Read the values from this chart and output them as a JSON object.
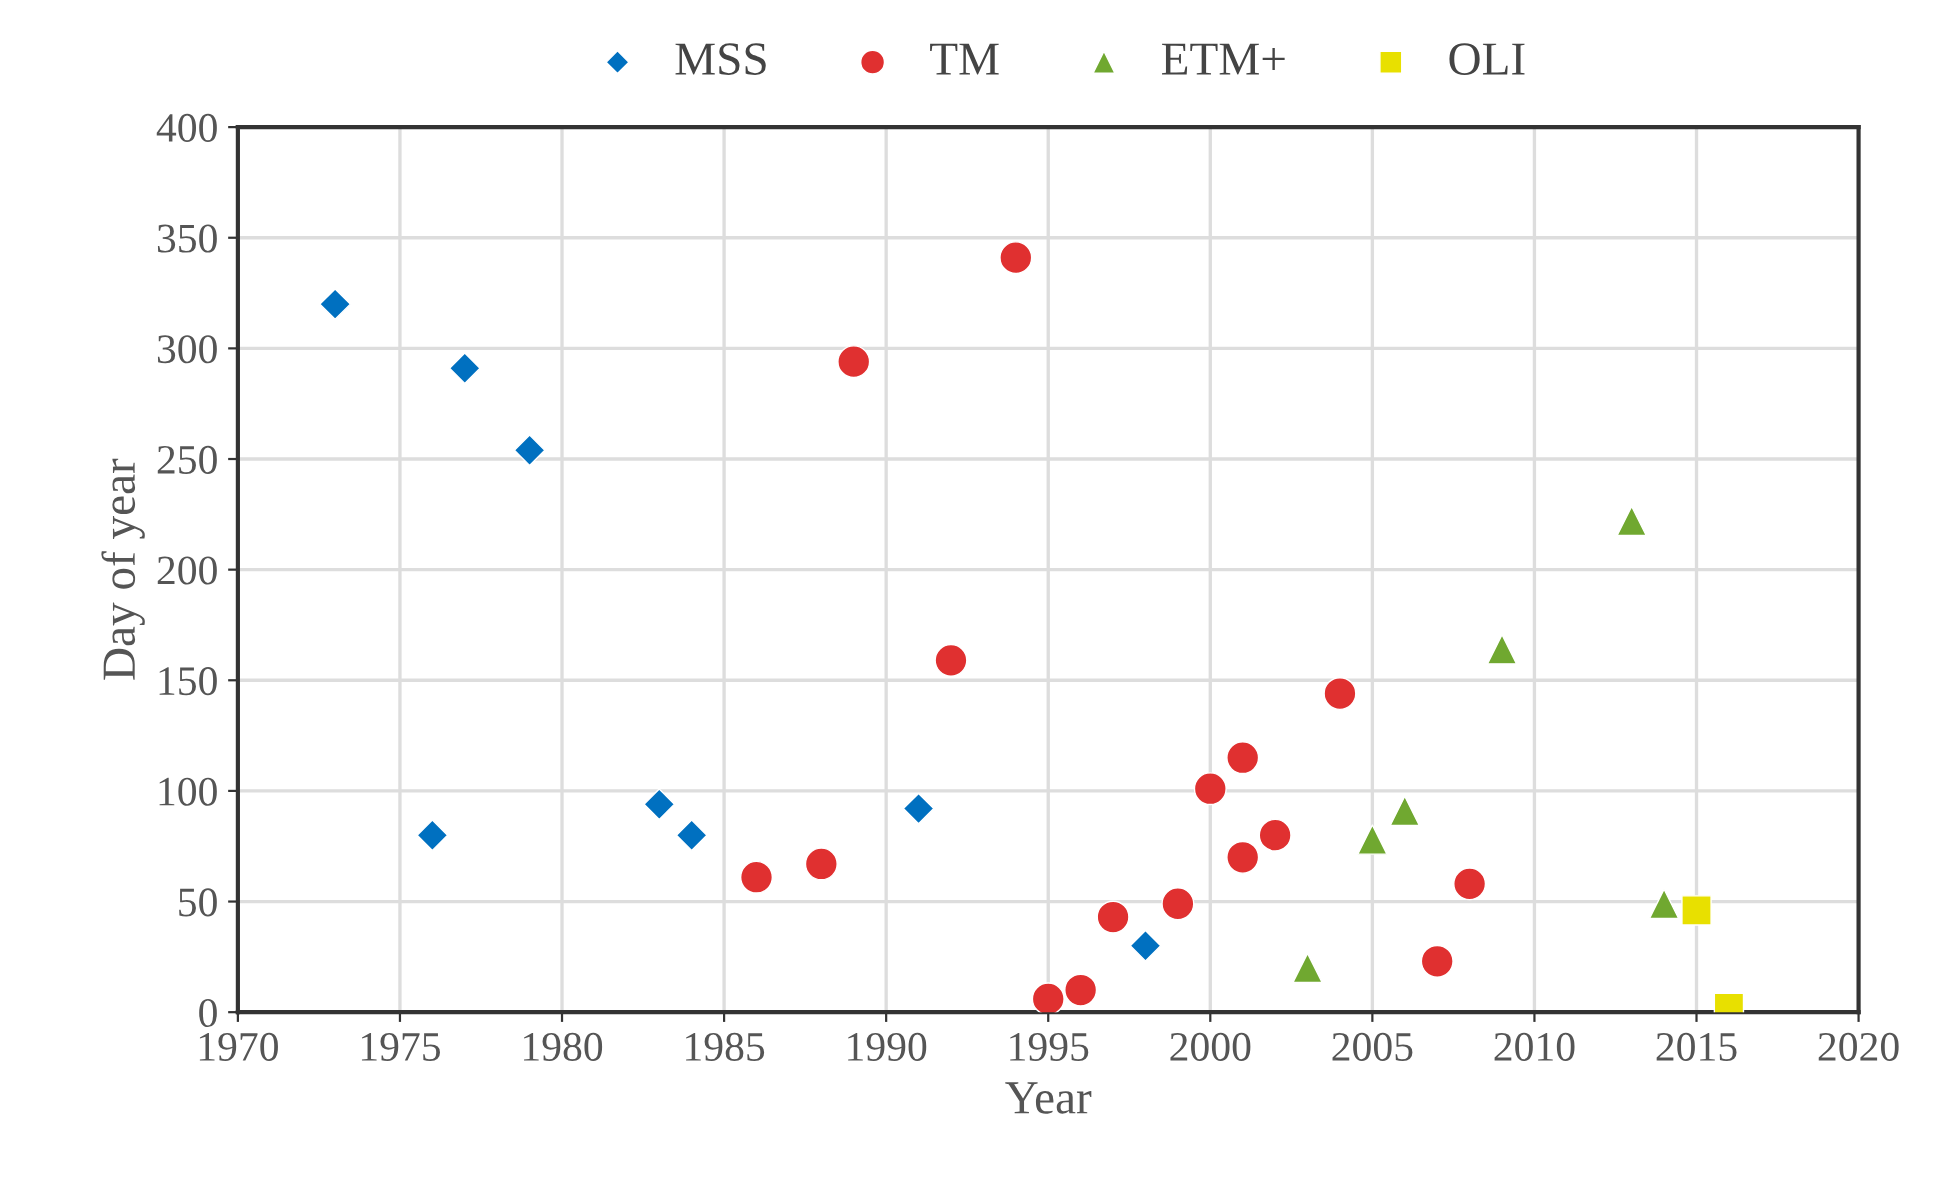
{
  "chart_data": {
    "type": "scatter",
    "xlabel": "Year",
    "ylabel": "Day of year",
    "xlim": [
      1970,
      2020
    ],
    "xticks": [
      1970,
      1975,
      1980,
      1985,
      1990,
      1995,
      2000,
      2005,
      2010,
      2015,
      2020
    ],
    "ylim": [
      0,
      400
    ],
    "yticks": [
      0,
      50,
      100,
      150,
      200,
      250,
      300,
      350,
      400
    ],
    "grid": true,
    "legend": "top",
    "series": [
      {
        "name": "MSS",
        "color": "#0070c0",
        "marker": "diamond",
        "x": [
          1973,
          1976,
          1977,
          1979,
          1983,
          1984,
          1991,
          1998
        ],
        "values": [
          320,
          80,
          291,
          254,
          94,
          80,
          92,
          30
        ]
      },
      {
        "name": "TM",
        "color": "#e03030",
        "marker": "circle",
        "x": [
          1986,
          1988,
          1989,
          1992,
          1994,
          1995,
          1996,
          1997,
          1999,
          2000,
          2001,
          2001,
          2002,
          2004,
          2007,
          2008
        ],
        "values": [
          61,
          67,
          294,
          159,
          341,
          6,
          10,
          43,
          49,
          101,
          115,
          70,
          80,
          144,
          23,
          58
        ]
      },
      {
        "name": "ETM+",
        "color": "#70a830",
        "marker": "triangle",
        "x": [
          2003,
          2005,
          2006,
          2009,
          2013,
          2014
        ],
        "values": [
          20,
          78,
          91,
          164,
          222,
          49
        ]
      },
      {
        "name": "OLI",
        "color": "#e8e000",
        "marker": "square",
        "x": [
          2015,
          2016
        ],
        "values": [
          46,
          2
        ]
      }
    ]
  }
}
